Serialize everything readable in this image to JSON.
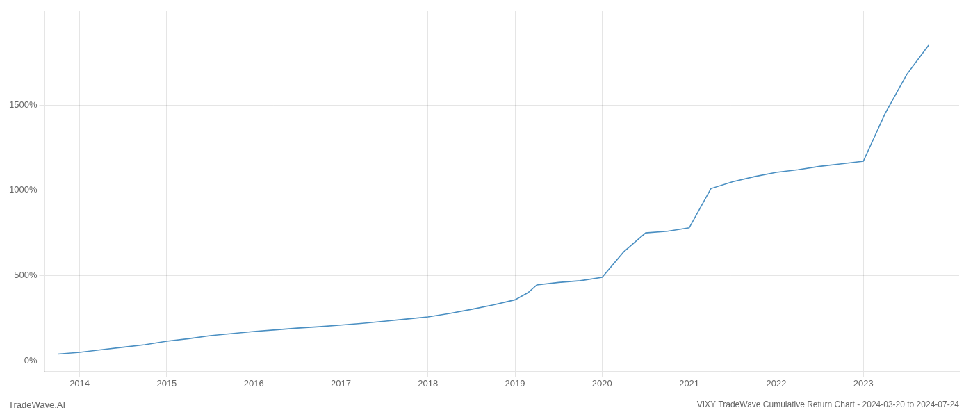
{
  "chart_data": {
    "type": "line",
    "title": "VIXY TradeWave Cumulative Return Chart - 2024-03-20 to 2024-07-24",
    "annotations": [
      "TradeWave.AI"
    ],
    "x": [
      2013.75,
      2014.0,
      2014.25,
      2014.5,
      2014.75,
      2015.0,
      2015.25,
      2015.5,
      2015.75,
      2016.0,
      2016.25,
      2016.5,
      2016.75,
      2017.0,
      2017.25,
      2017.5,
      2017.75,
      2018.0,
      2018.25,
      2018.5,
      2018.75,
      2019.0,
      2019.15,
      2019.25,
      2019.5,
      2019.75,
      2020.0,
      2020.25,
      2020.5,
      2020.75,
      2021.0,
      2021.25,
      2021.5,
      2021.75,
      2022.0,
      2022.25,
      2022.5,
      2022.75,
      2023.0,
      2023.25,
      2023.5,
      2023.75
    ],
    "values": [
      40,
      50,
      65,
      80,
      95,
      115,
      130,
      148,
      160,
      172,
      182,
      192,
      200,
      210,
      220,
      232,
      245,
      258,
      278,
      302,
      328,
      358,
      400,
      445,
      460,
      470,
      490,
      640,
      750,
      760,
      780,
      1010,
      1050,
      1080,
      1105,
      1120,
      1140,
      1155,
      1170,
      1450,
      1680,
      1850
    ],
    "color": "#4a8fc2",
    "xlim": [
      2013.6,
      2024.1
    ],
    "xticks": [
      2014,
      2015,
      2016,
      2017,
      2018,
      2019,
      2020,
      2021,
      2022,
      2023
    ],
    "ylim": [
      -60,
      2050
    ],
    "yticks": [
      {
        "value": 0,
        "label": "0%"
      },
      {
        "value": 500,
        "label": "500%"
      },
      {
        "value": 1000,
        "label": "1000%"
      },
      {
        "value": 1500,
        "label": "1500%"
      }
    ],
    "grid": true
  }
}
